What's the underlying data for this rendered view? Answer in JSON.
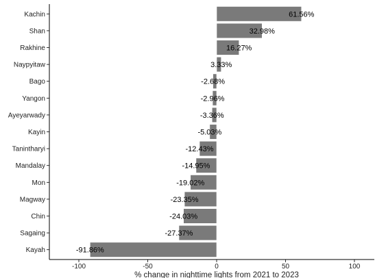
{
  "chart_data": {
    "type": "bar",
    "orientation": "horizontal",
    "categories": [
      "Kachin",
      "Shan",
      "Rakhine",
      "Naypyitaw",
      "Bago",
      "Yangon",
      "Ayeyarwady",
      "Kayin",
      "Tanintharyi",
      "Mandalay",
      "Mon",
      "Magway",
      "Chin",
      "Sagaing",
      "Kayah"
    ],
    "values": [
      61.56,
      32.98,
      16.27,
      3.33,
      -2.68,
      -2.96,
      -3.36,
      -5.03,
      -12.43,
      -14.95,
      -19.02,
      -23.35,
      -24.03,
      -27.37,
      -91.86
    ],
    "labels": [
      "61.56%",
      "32.98%",
      "16.27%",
      "3.33%",
      "-2.68%",
      "-2.96%",
      "-3.36%",
      "-5.03%",
      "-12.43%",
      "-14.95%",
      "-19.02%",
      "-23.35%",
      "-24.03%",
      "-27.37%",
      "-91.86%"
    ],
    "xticks": [
      -100,
      -50,
      0,
      50,
      100
    ],
    "xtick_labels": [
      "-100",
      "-50",
      "0",
      "50",
      "100"
    ],
    "xlim": [
      -122,
      115
    ],
    "xlabel": "% change in nighttime lights from 2021 to 2023",
    "ylabel": "",
    "title": "",
    "grid": false,
    "colors": {
      "bar": "#7a7a7a",
      "bar_stroke": "#ffffff",
      "axis": "#000000",
      "text": "#000000"
    }
  }
}
